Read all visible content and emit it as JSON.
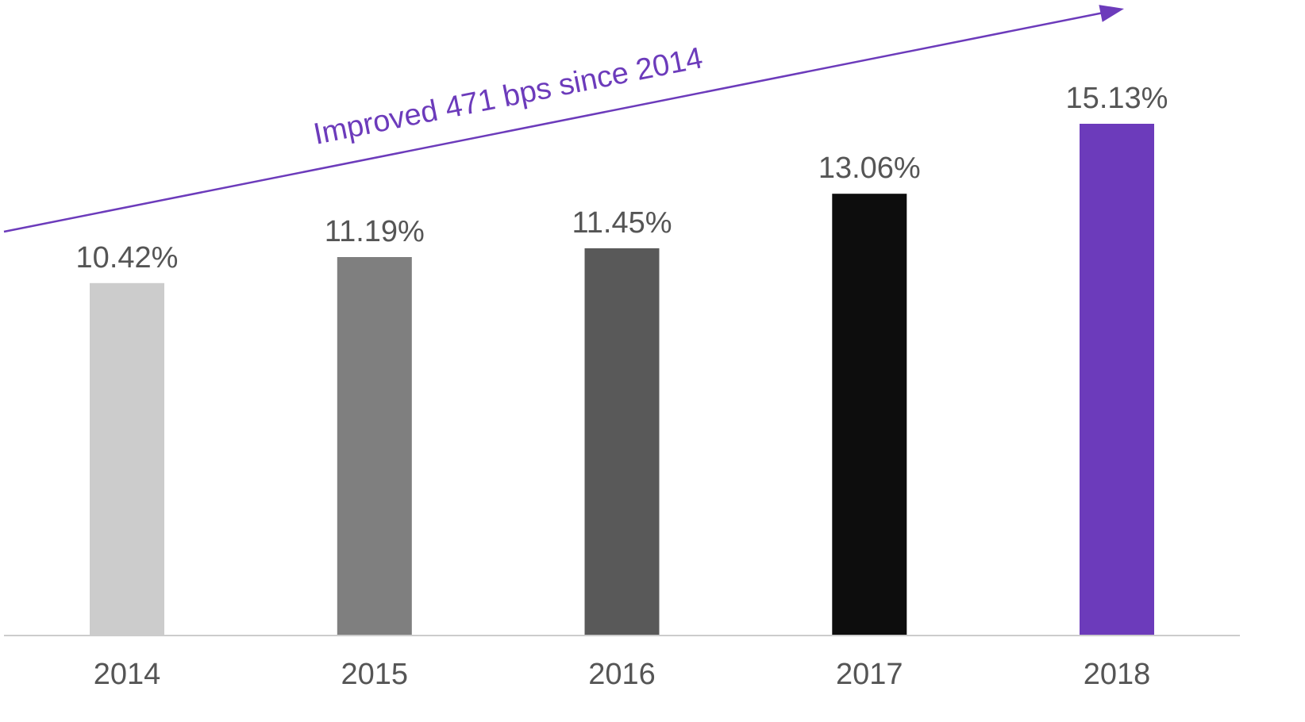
{
  "chart_data": {
    "type": "bar",
    "categories": [
      "2014",
      "2015",
      "2016",
      "2017",
      "2018"
    ],
    "values": [
      10.42,
      11.19,
      11.45,
      13.06,
      15.13
    ],
    "value_labels": [
      "10.42%",
      "11.19%",
      "11.45%",
      "13.06%",
      "15.13%"
    ],
    "bar_colors": [
      "#cccccc",
      "#7f7f7f",
      "#595959",
      "#0d0d0d",
      "#6c3bbb"
    ],
    "ylim": [
      0,
      15.13
    ],
    "grid": false,
    "legend": "none",
    "annotation": {
      "text": "Improved 471 bps since 2014",
      "color": "#6c3bbb"
    }
  }
}
